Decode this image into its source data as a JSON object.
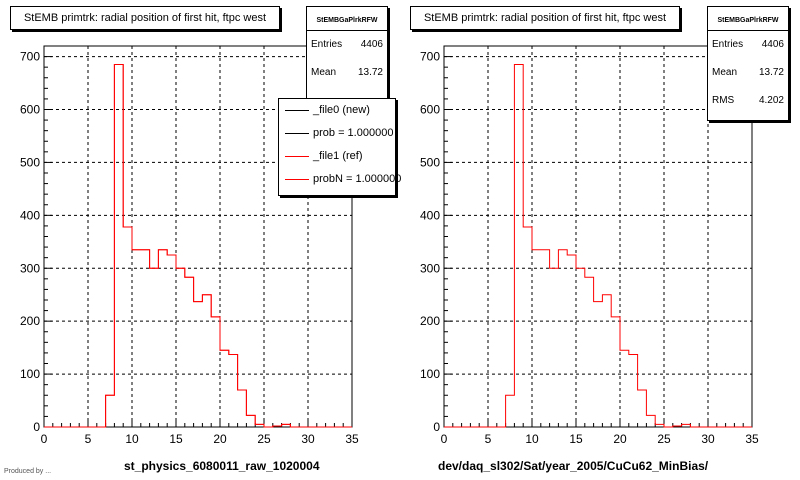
{
  "chart_data": [
    {
      "type": "bar",
      "title": "StEMB primtrk: radial position of first hit, ftpc west",
      "xlabel": "st_physics_6080011_raw_1020004",
      "ylabel": "",
      "xlim": [
        0,
        35
      ],
      "ylim": [
        0,
        720
      ],
      "xticks": [
        0,
        5,
        10,
        15,
        20,
        25,
        30,
        35
      ],
      "yticks": [
        0,
        100,
        200,
        300,
        400,
        500,
        600,
        700
      ],
      "grid": true,
      "bin_edges": [
        0,
        1,
        2,
        3,
        4,
        5,
        6,
        7,
        8,
        9,
        10,
        11,
        12,
        13,
        14,
        15,
        16,
        17,
        18,
        19,
        20,
        21,
        22,
        23,
        24,
        25,
        26,
        27,
        28,
        29,
        30,
        31,
        32,
        33,
        34,
        35
      ],
      "series": [
        {
          "color": "#ff0000",
          "values": [
            0,
            0,
            0,
            0,
            0,
            0,
            0,
            60,
            685,
            378,
            335,
            335,
            300,
            335,
            325,
            300,
            283,
            237,
            250,
            208,
            145,
            137,
            70,
            22,
            5,
            0,
            2,
            5,
            0,
            0,
            0,
            0,
            0,
            0,
            0
          ]
        },
        {
          "color": "#ff0000",
          "values": [
            0,
            0,
            0,
            0,
            0,
            0,
            0,
            60,
            685,
            378,
            335,
            335,
            300,
            335,
            325,
            300,
            283,
            237,
            250,
            208,
            145,
            137,
            70,
            22,
            5,
            0,
            2,
            5,
            0,
            0,
            0,
            0,
            0,
            0,
            0
          ]
        }
      ],
      "stats": {
        "name": "StEMBGaPlrkRFW",
        "entries_label": "Entries",
        "entries": "4406",
        "mean_label": "Mean",
        "mean": "13.72"
      },
      "legend": [
        {
          "label": "_file0 (new)",
          "color": "#000000"
        },
        {
          "label": "prob = 1.000000",
          "color": "#000000"
        },
        {
          "label": "_file1 (ref)",
          "color": "#ff0000"
        },
        {
          "label": "probN = 1.000000",
          "color": "#ff0000"
        }
      ]
    },
    {
      "type": "bar",
      "title": "StEMB primtrk: radial position of first hit, ftpc west",
      "xlabel": "dev/daq_sl302/Sat/year_2005/CuCu62_MinBias/",
      "ylabel": "",
      "xlim": [
        0,
        35
      ],
      "ylim": [
        0,
        720
      ],
      "xticks": [
        0,
        5,
        10,
        15,
        20,
        25,
        30,
        35
      ],
      "yticks": [
        0,
        100,
        200,
        300,
        400,
        500,
        600,
        700
      ],
      "grid": true,
      "bin_edges": [
        0,
        1,
        2,
        3,
        4,
        5,
        6,
        7,
        8,
        9,
        10,
        11,
        12,
        13,
        14,
        15,
        16,
        17,
        18,
        19,
        20,
        21,
        22,
        23,
        24,
        25,
        26,
        27,
        28,
        29,
        30,
        31,
        32,
        33,
        34,
        35
      ],
      "series": [
        {
          "color": "#ff0000",
          "values": [
            0,
            0,
            0,
            0,
            0,
            0,
            0,
            60,
            685,
            378,
            335,
            335,
            300,
            335,
            325,
            300,
            283,
            237,
            250,
            208,
            145,
            137,
            70,
            22,
            5,
            0,
            2,
            5,
            0,
            0,
            0,
            0,
            0,
            0,
            0
          ]
        }
      ],
      "stats": {
        "name": "StEMBGaPlrkRFW",
        "entries_label": "Entries",
        "entries": "4406",
        "mean_label": "Mean",
        "mean": "13.72",
        "rms_label": "RMS",
        "rms": "4.202"
      }
    }
  ],
  "footer_text": "Produced by ..."
}
